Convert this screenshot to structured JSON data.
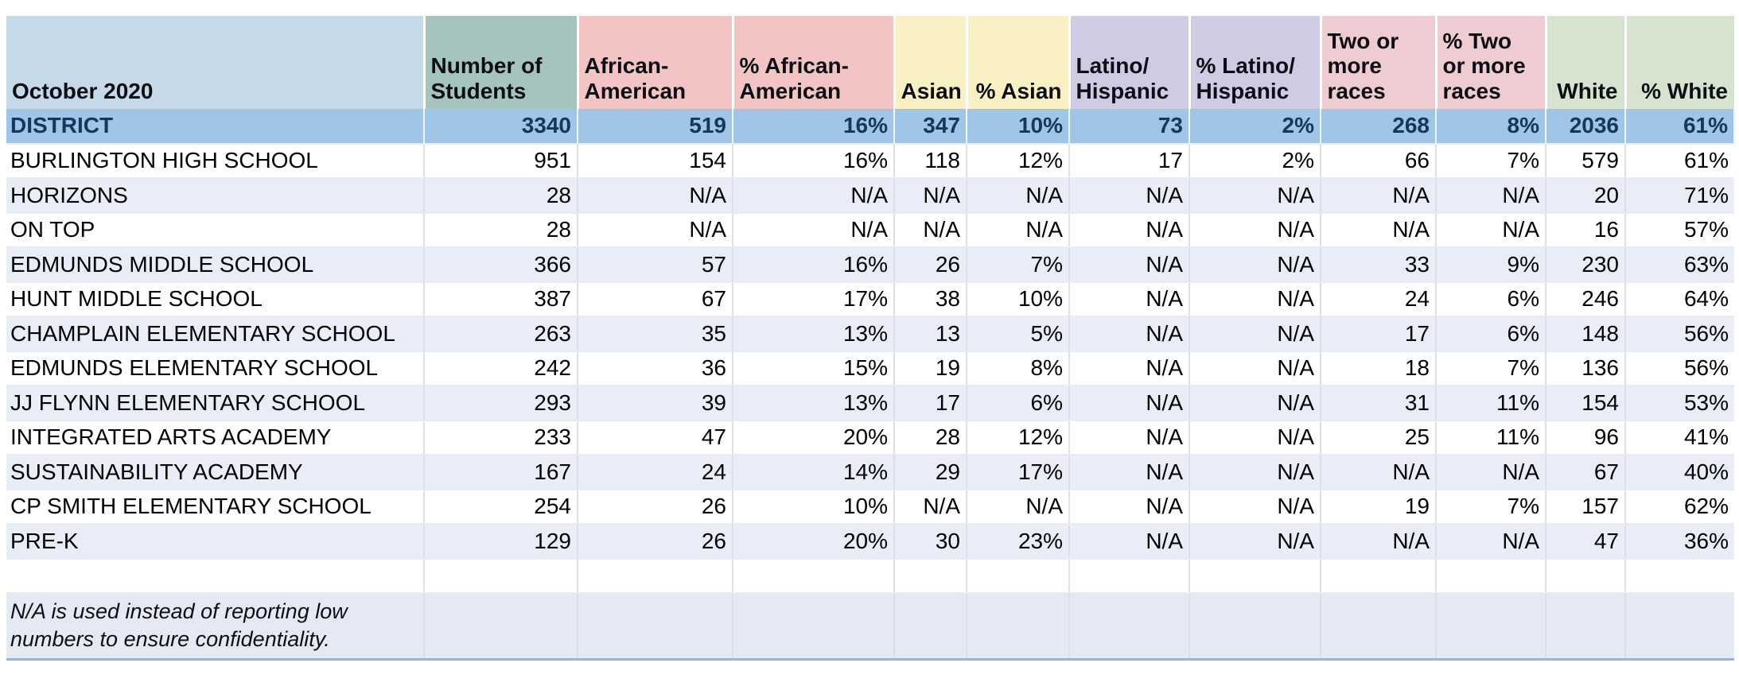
{
  "table": {
    "title_cell": "October 2020",
    "columns": [
      {
        "label": "Number of\nStudents",
        "group": "students",
        "color": "#a6c4be"
      },
      {
        "label": "African-\nAmerican",
        "group": "african-american",
        "color": "#f2c4c4"
      },
      {
        "label": "% African-\nAmerican",
        "group": "african-american",
        "color": "#f2c4c4"
      },
      {
        "label": "Asian",
        "group": "asian",
        "color": "#f8efc2"
      },
      {
        "label": "% Asian",
        "group": "asian",
        "color": "#f8efc2"
      },
      {
        "label": "Latino/\nHispanic",
        "group": "latino-hispanic",
        "color": "#cdcce2"
      },
      {
        "label": "% Latino/\nHispanic",
        "group": "latino-hispanic",
        "color": "#cdcce2"
      },
      {
        "label": "Two or\nmore\nraces",
        "group": "two-or-more-races",
        "color": "#eeccd2"
      },
      {
        "label": "% Two\nor more\nraces",
        "group": "two-or-more-races",
        "color": "#eeccd2"
      },
      {
        "label": "White",
        "group": "white",
        "color": "#d6e4cf"
      },
      {
        "label": "% White",
        "group": "white",
        "color": "#d6e4cf"
      }
    ],
    "rows": [
      {
        "name": "DISTRICT",
        "values": [
          "3340",
          "519",
          "16%",
          "347",
          "10%",
          "73",
          "2%",
          "268",
          "8%",
          "2036",
          "61%"
        ]
      },
      {
        "name": "BURLINGTON HIGH SCHOOL",
        "values": [
          "951",
          "154",
          "16%",
          "118",
          "12%",
          "17",
          "2%",
          "66",
          "7%",
          "579",
          "61%"
        ]
      },
      {
        "name": "HORIZONS",
        "values": [
          "28",
          "N/A",
          "N/A",
          "N/A",
          "N/A",
          "N/A",
          "N/A",
          "N/A",
          "N/A",
          "20",
          "71%"
        ]
      },
      {
        "name": "ON TOP",
        "values": [
          "28",
          "N/A",
          "N/A",
          "N/A",
          "N/A",
          "N/A",
          "N/A",
          "N/A",
          "N/A",
          "16",
          "57%"
        ]
      },
      {
        "name": "EDMUNDS MIDDLE SCHOOL",
        "values": [
          "366",
          "57",
          "16%",
          "26",
          "7%",
          "N/A",
          "N/A",
          "33",
          "9%",
          "230",
          "63%"
        ]
      },
      {
        "name": "HUNT MIDDLE SCHOOL",
        "values": [
          "387",
          "67",
          "17%",
          "38",
          "10%",
          "N/A",
          "N/A",
          "24",
          "6%",
          "246",
          "64%"
        ]
      },
      {
        "name": "CHAMPLAIN ELEMENTARY SCHOOL",
        "values": [
          "263",
          "35",
          "13%",
          "13",
          "5%",
          "N/A",
          "N/A",
          "17",
          "6%",
          "148",
          "56%"
        ]
      },
      {
        "name": "EDMUNDS ELEMENTARY SCHOOL",
        "values": [
          "242",
          "36",
          "15%",
          "19",
          "8%",
          "N/A",
          "N/A",
          "18",
          "7%",
          "136",
          "56%"
        ]
      },
      {
        "name": "JJ FLYNN ELEMENTARY SCHOOL",
        "values": [
          "293",
          "39",
          "13%",
          "17",
          "6%",
          "N/A",
          "N/A",
          "31",
          "11%",
          "154",
          "53%"
        ]
      },
      {
        "name": "INTEGRATED ARTS ACADEMY",
        "values": [
          "233",
          "47",
          "20%",
          "28",
          "12%",
          "N/A",
          "N/A",
          "25",
          "11%",
          "96",
          "41%"
        ]
      },
      {
        "name": "SUSTAINABILITY ACADEMY",
        "values": [
          "167",
          "24",
          "14%",
          "29",
          "17%",
          "N/A",
          "N/A",
          "N/A",
          "N/A",
          "67",
          "40%"
        ]
      },
      {
        "name": "CP SMITH ELEMENTARY SCHOOL",
        "values": [
          "254",
          "26",
          "10%",
          "N/A",
          "N/A",
          "N/A",
          "N/A",
          "19",
          "7%",
          "157",
          "62%"
        ]
      },
      {
        "name": "PRE-K",
        "values": [
          "129",
          "26",
          "20%",
          "30",
          "23%",
          "N/A",
          "N/A",
          "N/A",
          "N/A",
          "47",
          "36%"
        ]
      },
      {
        "name": "",
        "values": [
          "",
          "",
          "",
          "",
          "",
          "",
          "",
          "",
          "",
          "",
          ""
        ]
      }
    ],
    "note": "N/A is used instead of reporting low\nnumbers to ensure confidentiality.",
    "colors": {
      "title_cell_bg": "#c6d9e8",
      "students_bg": "#a6c4be",
      "african_american_bg": "#f2c4c4",
      "asian_bg": "#f8efc2",
      "latino_hispanic_bg": "#cdcce2",
      "two_or_more_races_bg": "#eeccd2",
      "white_bg": "#d6e4cf",
      "district_row_bg": "#9fc5e8",
      "district_row_text": "#17365d",
      "alt_row_bg": "#e9edf7",
      "note_row_bg": "#e4e9f4"
    }
  }
}
